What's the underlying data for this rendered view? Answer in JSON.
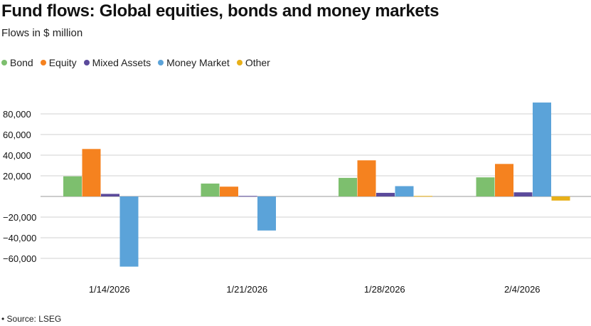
{
  "title": "Fund flows: Global equities, bonds and money markets",
  "subtitle": "Flows in $ million",
  "source": "• Source: LSEG",
  "legend": [
    {
      "name": "Bond",
      "color": "#7dbf6e"
    },
    {
      "name": "Equity",
      "color": "#f5821f"
    },
    {
      "name": "Mixed Assets",
      "color": "#5b4a9b"
    },
    {
      "name": "Money Market",
      "color": "#5ba3d9"
    },
    {
      "name": "Other",
      "color": "#e8b019"
    }
  ],
  "chart_data": {
    "type": "bar",
    "title": "Fund flows: Global equities, bonds and money markets",
    "subtitle": "Flows in $ million",
    "categories": [
      "1/14/2026",
      "1/21/2026",
      "1/28/2026",
      "2/4/2026"
    ],
    "series": [
      {
        "name": "Bond",
        "color": "#7dbf6e",
        "values": [
          19500,
          12500,
          18000,
          18500
        ]
      },
      {
        "name": "Equity",
        "color": "#f5821f",
        "values": [
          46000,
          9500,
          35000,
          31500
        ]
      },
      {
        "name": "Mixed Assets",
        "color": "#5b4a9b",
        "values": [
          2500,
          500,
          3500,
          4000
        ]
      },
      {
        "name": "Money Market",
        "color": "#5ba3d9",
        "values": [
          -68000,
          -33000,
          10000,
          91000
        ]
      },
      {
        "name": "Other",
        "color": "#e8b019",
        "values": [
          0,
          0,
          500,
          -4000
        ]
      }
    ],
    "yticks": [
      80000,
      60000,
      40000,
      20000,
      -20000,
      -40000,
      -60000
    ],
    "ytick_labels": [
      "80,000",
      "60,000",
      "40,000",
      "20,000",
      "−20,000",
      "−40,000",
      "−60,000"
    ],
    "ylim": [
      -68000,
      91000
    ],
    "grid": true,
    "legend_position": "top-left"
  }
}
